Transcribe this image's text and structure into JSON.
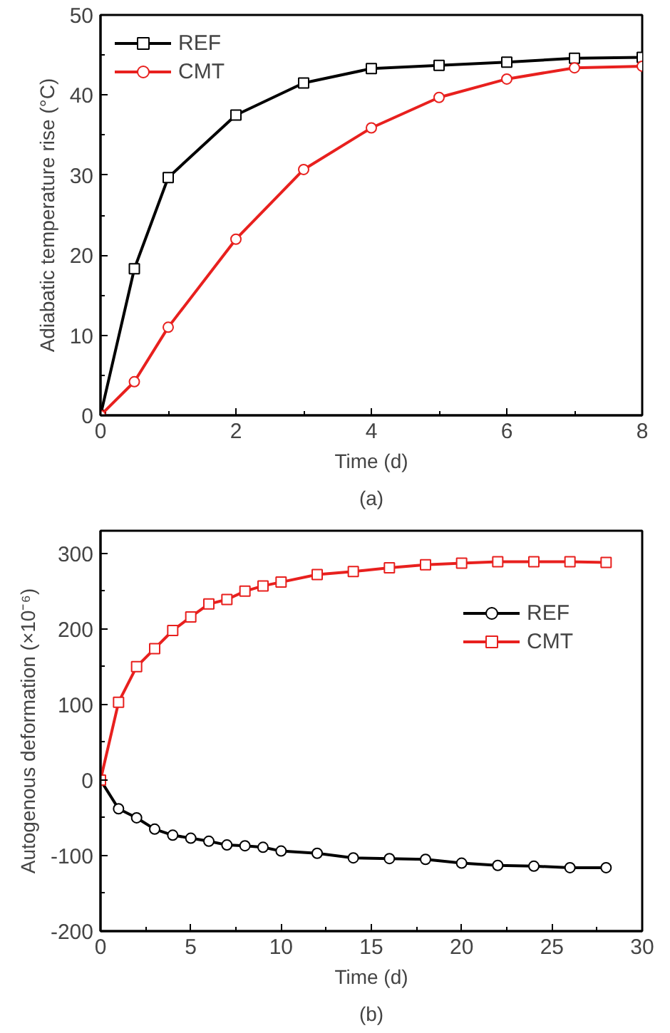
{
  "chart_data": [
    {
      "type": "line",
      "xlabel": "Time (d)",
      "ylabel": "Adiabatic temperature rise (°C)",
      "annotations": [
        "(a)"
      ],
      "x": [
        0,
        0.5,
        1,
        2,
        3,
        4,
        5,
        6,
        7,
        8
      ],
      "series": [
        {
          "name": "REF",
          "color": "#000000",
          "marker": "square",
          "values": [
            0,
            18.3,
            29.7,
            37.5,
            41.5,
            43.3,
            43.7,
            44.1,
            44.6,
            44.7
          ]
        },
        {
          "name": "CMT",
          "color": "#e8201e",
          "marker": "circle",
          "values": [
            0,
            4.2,
            11,
            22,
            30.7,
            35.9,
            39.7,
            42,
            43.4,
            43.6
          ]
        }
      ],
      "xlim": [
        0,
        8
      ],
      "ylim": [
        0,
        50
      ],
      "xticks": [
        0,
        2,
        4,
        6,
        8
      ],
      "yticks": [
        0,
        10,
        20,
        30,
        40,
        50
      ],
      "legend": "top left",
      "grid": false
    },
    {
      "type": "line",
      "xlabel": "Time (d)",
      "ylabel": "Autogenous deformation (×10⁻⁶)",
      "annotations": [
        "(b)"
      ],
      "x": [
        0,
        1,
        2,
        3,
        4,
        5,
        6,
        7,
        8,
        9,
        10,
        12,
        14,
        16,
        18,
        20,
        22,
        24,
        26,
        28
      ],
      "series": [
        {
          "name": "REF",
          "color": "#000000",
          "marker": "circle",
          "values": [
            0,
            -38,
            -50,
            -65,
            -73,
            -77,
            -81,
            -86,
            -87,
            -89,
            -94,
            -97,
            -103,
            -104,
            -105,
            -110,
            -113,
            -114,
            -116,
            -116
          ]
        },
        {
          "name": "CMT",
          "color": "#e8201e",
          "marker": "square",
          "values": [
            0,
            103,
            150,
            174,
            198,
            216,
            233,
            239,
            250,
            257,
            262,
            272,
            276,
            281,
            285,
            287,
            289,
            289,
            289,
            288
          ]
        }
      ],
      "xlim": [
        0,
        30
      ],
      "ylim": [
        -200,
        330
      ],
      "xticks": [
        0,
        5,
        10,
        15,
        20,
        25,
        30
      ],
      "yticks": [
        -200,
        -100,
        0,
        100,
        200,
        300
      ],
      "legend": "top right",
      "grid": false
    }
  ]
}
